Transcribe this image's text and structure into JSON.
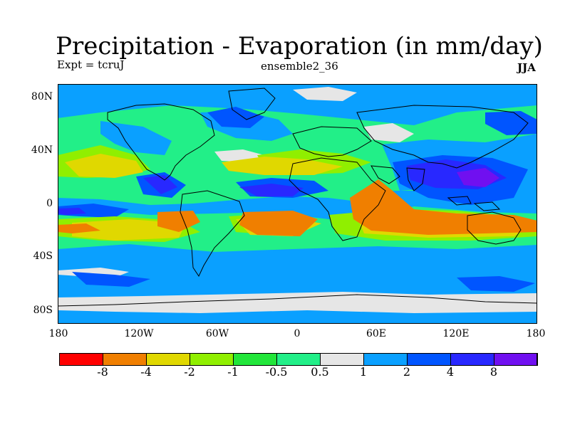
{
  "title": "Precipitation - Evaporation (in mm/day)",
  "subtitle_left": "Expt = tcruJ",
  "subtitle_center": "ensemble2_36",
  "subtitle_right": "JJA",
  "y_ticks": [
    "80N",
    "40N",
    "0",
    "40S",
    "80S"
  ],
  "x_ticks": [
    "180",
    "120W",
    "60W",
    "0",
    "60E",
    "120E",
    "180"
  ],
  "colorbar": {
    "labels": [
      "-8",
      "-4",
      "-2",
      "-1",
      "-0.5",
      "0.5",
      "1",
      "2",
      "4",
      "8"
    ],
    "colors": [
      "#ff0000",
      "#f07f00",
      "#e0d800",
      "#90ef00",
      "#22e63a",
      "#22ef88",
      "#e6e6e6",
      "#0aa0ff",
      "#0055ff",
      "#2828ff",
      "#7010f0"
    ]
  },
  "colors": {
    "ocean_base": "#22ef88",
    "land_outline": "#000000"
  }
}
